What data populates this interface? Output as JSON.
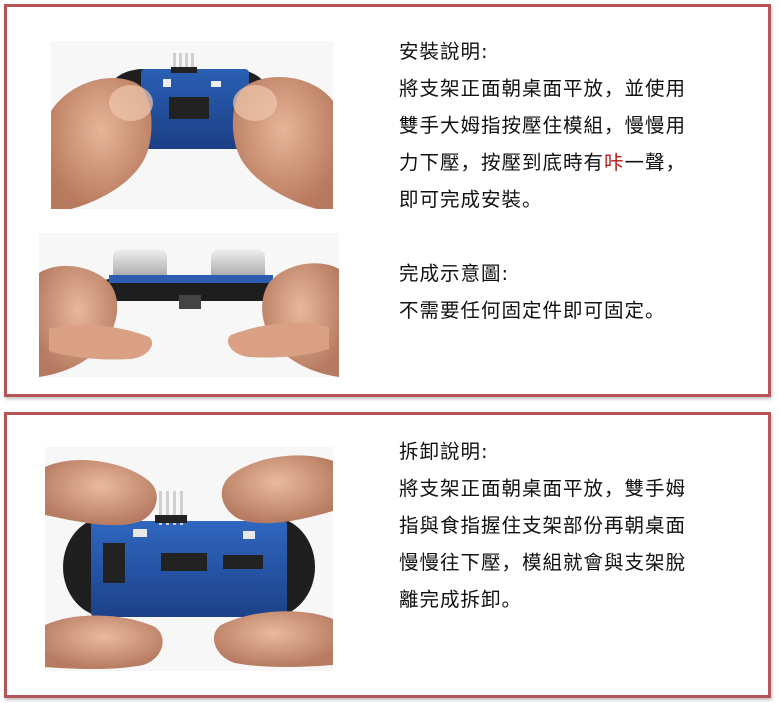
{
  "install": {
    "heading": "安裝說明:",
    "line1": "將支架正面朝桌面平放，並使用",
    "line2": "雙手大姆指按壓住模組，慢慢用",
    "line3_before": "力下壓，按壓到底時有",
    "line3_highlight": "咔",
    "line3_after": "一聲，",
    "line4": "即可完成安裝。",
    "done_heading": "完成示意圖:",
    "done_line1": "不需要任何固定件即可固定。",
    "highlight_color": "#b01818"
  },
  "remove": {
    "heading": "拆卸說明:",
    "line1": "將支架正面朝桌面平放，雙手姆",
    "line2": "指與食指握住支架部份再朝桌面",
    "line3": "慢慢往下壓，模組就會與支架脫",
    "line4": "離完成拆卸。"
  },
  "colors": {
    "frame": "#b5555a",
    "text": "#111111"
  }
}
